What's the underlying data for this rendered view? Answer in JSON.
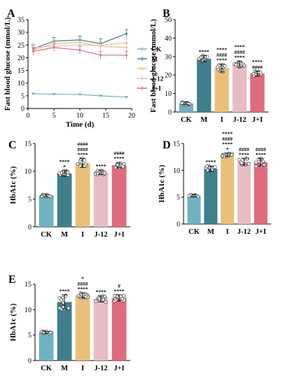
{
  "colors": {
    "CK": "#6fb3c2",
    "M": "#3f7f8c",
    "I": "#e8c07a",
    "J-12": "#e8bcc4",
    "J+I": "#e06b7c",
    "axis": "#000000",
    "sig": "#000000"
  },
  "chart_data": [
    {
      "id": "A",
      "type": "line",
      "panel_label": "A",
      "title": "",
      "xlabel": "Time (d)",
      "ylabel": "Fast blood glucose (mmol/L)",
      "x": [
        1,
        5,
        10,
        14,
        19
      ],
      "xticks": [
        "0",
        "5",
        "10",
        "15",
        "20"
      ],
      "xtick_values": [
        0,
        5,
        10,
        15,
        20
      ],
      "xlim": [
        0,
        20
      ],
      "ylim": [
        0,
        35
      ],
      "yticks": [
        "0",
        "5",
        "10",
        "15",
        "20",
        "25",
        "30",
        "35"
      ],
      "ytick_values": [
        0,
        5,
        10,
        15,
        20,
        25,
        30,
        35
      ],
      "legend_position": "right",
      "series": [
        {
          "name": "CK",
          "color_key": "CK",
          "values": [
            5.8,
            5.6,
            5.5,
            5.0,
            4.5
          ],
          "err": [
            0.3,
            0.3,
            0.3,
            0.3,
            0.3
          ]
        },
        {
          "name": "M",
          "color_key": "M",
          "values": [
            23.5,
            26.5,
            27.0,
            25.5,
            29.5
          ],
          "err": [
            1.5,
            1.5,
            1.5,
            2.0,
            1.5
          ]
        },
        {
          "name": "I",
          "color_key": "I",
          "values": [
            23.0,
            25.5,
            26.0,
            24.5,
            24.0
          ],
          "err": [
            1.5,
            1.5,
            1.5,
            1.5,
            1.5
          ]
        },
        {
          "name": "J-12",
          "color_key": "J-12",
          "values": [
            24.0,
            24.5,
            25.0,
            24.8,
            26.0
          ],
          "err": [
            1.5,
            1.5,
            1.5,
            1.5,
            1.5
          ]
        },
        {
          "name": "J+I",
          "color_key": "J+I",
          "values": [
            22.5,
            24.0,
            23.0,
            21.0,
            21.0
          ],
          "err": [
            1.5,
            1.5,
            1.5,
            1.5,
            1.5
          ]
        }
      ]
    },
    {
      "id": "B",
      "type": "bar",
      "panel_label": "B",
      "title": "",
      "xlabel": "",
      "ylabel": "Fast blood glucose (mmol/L)",
      "categories": [
        "CK",
        "M",
        "I",
        "J-12",
        "J+I"
      ],
      "values": [
        4.7,
        28.8,
        23.8,
        25.8,
        20.8
      ],
      "err": [
        0.8,
        1.6,
        2.2,
        1.6,
        1.4
      ],
      "ylim": [
        0,
        50
      ],
      "yticks": [
        "0",
        "10",
        "20",
        "30",
        "40",
        "50"
      ],
      "ytick_values": [
        0,
        10,
        20,
        30,
        40,
        50
      ],
      "annotations": [
        [],
        [
          "****"
        ],
        [
          "****",
          "####",
          "****"
        ],
        [
          "****",
          "####",
          "****"
        ],
        [
          "####",
          "****"
        ]
      ]
    },
    {
      "id": "C",
      "type": "bar",
      "panel_label": "C",
      "title": "",
      "xlabel": "",
      "ylabel": "HbA1c (%)",
      "categories": [
        "CK",
        "M",
        "I",
        "J-12",
        "J+I"
      ],
      "values": [
        5.6,
        9.6,
        11.5,
        9.8,
        11.1
      ],
      "err": [
        0.2,
        0.5,
        0.8,
        0.4,
        0.5
      ],
      "ylim": [
        0,
        15
      ],
      "yticks": [
        "0",
        "5",
        "10",
        "15"
      ],
      "ytick_values": [
        0,
        5,
        10,
        15
      ],
      "annotations": [
        [],
        [
          "*",
          "****"
        ],
        [
          "****",
          "####",
          "####"
        ],
        [
          "****"
        ],
        [
          "****",
          "####"
        ]
      ]
    },
    {
      "id": "D",
      "type": "bar",
      "panel_label": "D",
      "title": "",
      "xlabel": "",
      "ylabel": "HbA1c (%)",
      "categories": [
        "CK",
        "M",
        "I",
        "J-12",
        "J+I"
      ],
      "values": [
        5.3,
        10.3,
        12.9,
        11.6,
        11.5
      ],
      "err": [
        0.2,
        0.5,
        0.3,
        0.6,
        0.7
      ],
      "ylim": [
        0,
        15
      ],
      "yticks": [
        "0",
        "5",
        "10",
        "15"
      ],
      "ytick_values": [
        0,
        5,
        10,
        15
      ],
      "annotations": [
        [],
        [
          "****"
        ],
        [
          "*",
          "****",
          "####",
          "****"
        ],
        [
          "****",
          "####"
        ],
        [
          "****",
          "####"
        ]
      ]
    },
    {
      "id": "E",
      "type": "bar",
      "panel_label": "E",
      "title": "",
      "xlabel": "",
      "ylabel": "HbA1c (%)",
      "categories": [
        "CK",
        "M",
        "I",
        "J-12",
        "J+I"
      ],
      "values": [
        5.5,
        11.5,
        12.8,
        12.1,
        12.3
      ],
      "err": [
        0.2,
        1.4,
        0.5,
        0.6,
        0.6
      ],
      "ylim": [
        0,
        15
      ],
      "yticks": [
        "0",
        "5",
        "10",
        "15"
      ],
      "ytick_values": [
        0,
        5,
        10,
        15
      ],
      "annotations": [
        [],
        [
          "****"
        ],
        [
          "****",
          "####",
          "*"
        ],
        [
          "****"
        ],
        [
          "****",
          "#"
        ]
      ]
    }
  ]
}
